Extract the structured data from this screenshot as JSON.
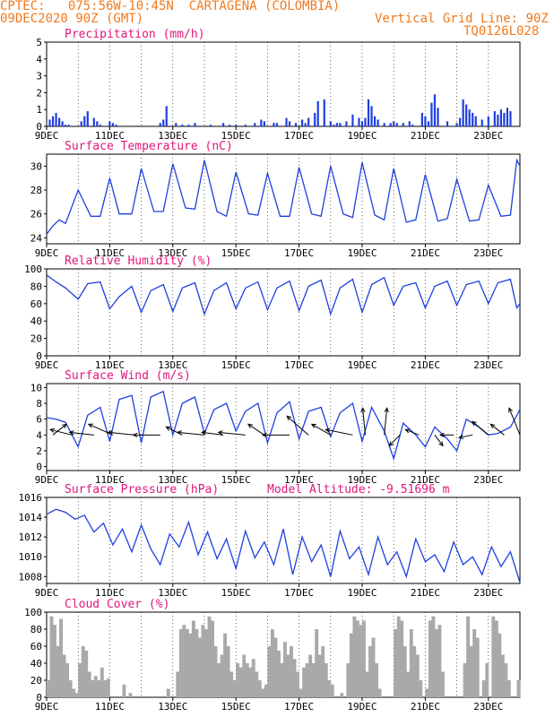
{
  "header": {
    "line1": "CPTEC:   075:56W-10:45N  CARTAGENA (COLOMBIA)",
    "line2": "09DEC2020 90Z (GMT)",
    "grid_note": "Vertical Grid Line: 90Z",
    "run_id": "TQ0126L028"
  },
  "colors": {
    "header": "#f07a1e",
    "title": "#e0157a",
    "line": "#1f3fe0",
    "bar": "#1f3fe0",
    "cloud": "#a9a9a9"
  },
  "x_tick_labels": [
    "9DEC",
    "11DEC",
    "13DEC",
    "15DEC",
    "17DEC",
    "19DEC",
    "21DEC",
    "23DEC"
  ],
  "chart_data": [
    {
      "type": "bar",
      "title": "Precipitation (mm/h)",
      "ylim": [
        0,
        5
      ],
      "yticks": [
        0,
        1,
        2,
        3,
        4,
        5
      ],
      "x_unit": "day",
      "xlim": [
        9,
        24
      ],
      "series": [
        {
          "x": [
            9.1,
            9.2,
            9.3,
            9.4,
            9.5,
            9.6,
            9.7,
            10.1,
            10.2,
            10.3,
            10.5,
            10.6,
            10.7,
            11.0,
            11.1,
            11.2,
            12.6,
            12.7,
            12.8,
            13.1,
            13.3,
            13.5,
            13.7,
            14.2,
            14.6,
            14.8,
            15.0,
            15.3,
            15.6,
            15.8,
            15.9,
            16.2,
            16.3,
            16.6,
            16.7,
            16.9,
            17.1,
            17.2,
            17.3,
            17.5,
            17.6,
            17.8,
            18.0,
            18.1,
            18.2,
            18.3,
            18.5,
            18.7,
            18.9,
            19.0,
            19.1,
            19.2,
            19.3,
            19.4,
            19.5,
            19.7,
            19.9,
            20.0,
            20.1,
            20.3,
            20.5,
            20.6,
            20.9,
            21.0,
            21.1,
            21.2,
            21.3,
            21.4,
            21.7,
            22.0,
            22.1,
            22.2,
            22.3,
            22.4,
            22.5,
            22.6,
            22.8,
            23.0,
            23.2,
            23.3,
            23.4,
            23.5,
            23.6,
            23.7
          ],
          "values": [
            0.4,
            0.6,
            0.8,
            0.5,
            0.3,
            0.1,
            0.1,
            0.3,
            0.6,
            0.9,
            0.5,
            0.3,
            0.1,
            0.3,
            0.2,
            0.1,
            0.2,
            0.4,
            1.2,
            0.2,
            0.1,
            0.1,
            0.2,
            0.1,
            0.2,
            0.1,
            0.1,
            0.1,
            0.2,
            0.4,
            0.3,
            0.2,
            0.2,
            0.5,
            0.3,
            0.2,
            0.4,
            0.2,
            0.5,
            0.8,
            1.5,
            1.6,
            0.3,
            0.1,
            0.2,
            0.2,
            0.3,
            0.7,
            0.5,
            0.3,
            0.5,
            1.6,
            1.2,
            0.6,
            0.4,
            0.2,
            0.2,
            0.3,
            0.2,
            0.2,
            0.3,
            0.1,
            0.8,
            0.6,
            0.3,
            1.4,
            1.9,
            1.1,
            0.3,
            0.2,
            0.5,
            1.6,
            1.3,
            1.0,
            0.8,
            0.6,
            0.4,
            0.6,
            0.9,
            0.7,
            1.0,
            0.8,
            1.1,
            0.9
          ]
        }
      ]
    },
    {
      "type": "line",
      "title": "Surface Temperature (nC)",
      "ylim": [
        23.5,
        31
      ],
      "yticks": [
        24,
        26,
        28,
        30
      ],
      "x_unit": "day",
      "xlim": [
        9,
        24
      ],
      "series": [
        {
          "x": [
            9.0,
            9.2,
            9.4,
            9.6,
            10.0,
            10.4,
            10.7,
            11.0,
            11.3,
            11.7,
            12.0,
            12.4,
            12.7,
            13.0,
            13.4,
            13.7,
            14.0,
            14.4,
            14.7,
            15.0,
            15.4,
            15.7,
            16.0,
            16.4,
            16.7,
            17.0,
            17.4,
            17.7,
            18.0,
            18.4,
            18.7,
            19.0,
            19.4,
            19.7,
            20.0,
            20.4,
            20.7,
            21.0,
            21.4,
            21.7,
            22.0,
            22.4,
            22.7,
            23.0,
            23.4,
            23.7,
            23.9,
            24.0
          ],
          "values": [
            24.3,
            25.0,
            25.5,
            25.2,
            28.0,
            25.8,
            25.8,
            29.0,
            26.0,
            26.0,
            29.8,
            26.2,
            26.2,
            30.2,
            26.5,
            26.4,
            30.5,
            26.2,
            25.8,
            29.5,
            26.0,
            25.9,
            29.4,
            25.8,
            25.8,
            29.9,
            26.0,
            25.8,
            30.0,
            26.0,
            25.7,
            30.3,
            25.9,
            25.5,
            29.8,
            25.3,
            25.5,
            29.3,
            25.4,
            25.6,
            28.9,
            25.4,
            25.5,
            28.4,
            25.8,
            25.9,
            30.5,
            30.0
          ]
        }
      ]
    },
    {
      "type": "line",
      "title": "Relative Humidity (%)",
      "ylim": [
        0,
        100
      ],
      "yticks": [
        0,
        20,
        40,
        60,
        80,
        100
      ],
      "x_unit": "day",
      "xlim": [
        9,
        24
      ],
      "series": [
        {
          "x": [
            9.0,
            9.3,
            9.6,
            10.0,
            10.3,
            10.7,
            11.0,
            11.3,
            11.7,
            12.0,
            12.3,
            12.7,
            13.0,
            13.3,
            13.7,
            14.0,
            14.3,
            14.7,
            15.0,
            15.3,
            15.7,
            16.0,
            16.3,
            16.7,
            17.0,
            17.3,
            17.7,
            18.0,
            18.3,
            18.7,
            19.0,
            19.3,
            19.7,
            20.0,
            20.3,
            20.7,
            21.0,
            21.3,
            21.7,
            22.0,
            22.3,
            22.7,
            23.0,
            23.3,
            23.7,
            23.9,
            24.0
          ],
          "values": [
            93,
            85,
            78,
            65,
            83,
            85,
            54,
            68,
            80,
            50,
            75,
            82,
            51,
            78,
            84,
            48,
            75,
            84,
            54,
            78,
            85,
            53,
            78,
            86,
            52,
            80,
            87,
            48,
            78,
            88,
            50,
            82,
            90,
            58,
            80,
            84,
            55,
            80,
            86,
            58,
            82,
            86,
            60,
            84,
            88,
            55,
            60
          ]
        }
      ]
    },
    {
      "type": "line",
      "title": "Surface Wind (m/s)",
      "ylim": [
        -0.5,
        10.5
      ],
      "yticks": [
        0,
        2,
        4,
        6,
        8,
        10
      ],
      "x_unit": "day",
      "xlim": [
        9,
        24
      ],
      "series": [
        {
          "x": [
            9.0,
            9.3,
            9.6,
            10.0,
            10.3,
            10.7,
            11.0,
            11.3,
            11.7,
            12.0,
            12.3,
            12.7,
            13.0,
            13.3,
            13.7,
            14.0,
            14.3,
            14.7,
            15.0,
            15.3,
            15.7,
            16.0,
            16.3,
            16.7,
            17.0,
            17.3,
            17.7,
            18.0,
            18.3,
            18.7,
            19.0,
            19.3,
            19.7,
            20.0,
            20.3,
            20.7,
            21.0,
            21.3,
            21.7,
            22.0,
            22.3,
            22.7,
            23.0,
            23.3,
            23.7,
            24.0
          ],
          "values": [
            6.2,
            6.0,
            5.6,
            2.5,
            6.5,
            7.5,
            3.2,
            8.5,
            9.0,
            3.0,
            8.8,
            9.5,
            4.0,
            8.0,
            8.8,
            4.2,
            7.2,
            8.0,
            4.5,
            7.0,
            8.0,
            3.0,
            6.8,
            8.2,
            3.5,
            7.0,
            7.5,
            3.8,
            6.8,
            8.0,
            3.2,
            7.5,
            4.5,
            1.0,
            5.5,
            4.0,
            2.5,
            5.0,
            3.5,
            2.0,
            6.0,
            5.0,
            4.0,
            4.2,
            5.0,
            7.2
          ]
        }
      ],
      "vectors": {
        "x": [
          9.2,
          9.8,
          10.5,
          11.1,
          11.8,
          12.6,
          13.3,
          14.0,
          14.6,
          15.3,
          15.9,
          16.7,
          17.3,
          18.0,
          18.7,
          19.1,
          19.7,
          20.2,
          20.8,
          21.3,
          21.9,
          22.5,
          23.0,
          23.5,
          24.0
        ],
        "u": [
          0.5,
          -0.8,
          -0.9,
          -0.9,
          -1.0,
          -1.0,
          -0.6,
          -1.0,
          -0.8,
          -1.0,
          -0.6,
          -1.0,
          -0.8,
          -0.7,
          -1.0,
          -0.1,
          0.1,
          -0.4,
          -0.5,
          0.3,
          -0.5,
          -0.5,
          -0.6,
          -0.5,
          -0.4
        ],
        "v": [
          0.4,
          0.2,
          0.1,
          0.4,
          0.1,
          0.0,
          0.3,
          0.1,
          0.1,
          0.1,
          0.4,
          0.0,
          0.7,
          0.4,
          0.2,
          1.0,
          1.0,
          -0.4,
          0.2,
          -0.4,
          0.0,
          -0.1,
          0.5,
          0.4,
          1.0
        ]
      }
    },
    {
      "type": "line",
      "title": "Surface Pressure (hPa)",
      "ylim": [
        1007.3,
        1016
      ],
      "yticks": [
        1008,
        1010,
        1012,
        1014,
        1016
      ],
      "x_unit": "day",
      "xlim": [
        9,
        24
      ],
      "series": [
        {
          "x": [
            9.0,
            9.3,
            9.6,
            9.9,
            10.2,
            10.5,
            10.8,
            11.1,
            11.4,
            11.7,
            12.0,
            12.3,
            12.6,
            12.9,
            13.2,
            13.5,
            13.8,
            14.1,
            14.4,
            14.7,
            15.0,
            15.3,
            15.6,
            15.9,
            16.2,
            16.5,
            16.8,
            17.1,
            17.4,
            17.7,
            18.0,
            18.3,
            18.6,
            18.9,
            19.2,
            19.5,
            19.8,
            20.1,
            20.4,
            20.7,
            21.0,
            21.3,
            21.6,
            21.9,
            22.2,
            22.5,
            22.8,
            23.1,
            23.4,
            23.7,
            24.0
          ],
          "values": [
            1014.3,
            1014.8,
            1014.5,
            1013.8,
            1014.2,
            1012.5,
            1013.4,
            1011.2,
            1012.8,
            1010.5,
            1013.2,
            1010.8,
            1009.2,
            1012.3,
            1011.0,
            1013.5,
            1010.2,
            1012.5,
            1009.8,
            1011.8,
            1008.8,
            1012.6,
            1009.9,
            1011.5,
            1009.2,
            1012.8,
            1008.2,
            1012.0,
            1009.5,
            1011.2,
            1008.0,
            1012.6,
            1009.8,
            1011.0,
            1008.2,
            1012.0,
            1009.2,
            1010.5,
            1008.0,
            1011.8,
            1009.5,
            1010.2,
            1008.5,
            1011.5,
            1009.2,
            1010.0,
            1008.2,
            1011.0,
            1009.0,
            1010.5,
            1007.4
          ]
        }
      ],
      "annotation": "Model Altitude: -9.51696 m"
    },
    {
      "type": "bar",
      "title": "Cloud Cover (%)",
      "ylim": [
        0,
        100
      ],
      "yticks": [
        0,
        20,
        40,
        60,
        80,
        100
      ],
      "x_unit": "day",
      "xlim": [
        9,
        24
      ],
      "series": [
        {
          "x": [
            9.0,
            9.1,
            9.2,
            9.3,
            9.4,
            9.5,
            9.6,
            9.7,
            9.8,
            9.9,
            10.0,
            10.1,
            10.2,
            10.3,
            10.4,
            10.5,
            10.6,
            10.7,
            10.8,
            10.9,
            11.0,
            11.1,
            11.2,
            11.3,
            11.4,
            11.5,
            11.6,
            11.7,
            11.8,
            11.9,
            12.0,
            12.1,
            12.2,
            12.3,
            12.4,
            12.5,
            12.6,
            12.7,
            12.8,
            12.9,
            13.0,
            13.1,
            13.2,
            13.3,
            13.4,
            13.5,
            13.6,
            13.7,
            13.8,
            13.9,
            14.0,
            14.1,
            14.2,
            14.3,
            14.4,
            14.5,
            14.6,
            14.7,
            14.8,
            14.9,
            15.0,
            15.1,
            15.2,
            15.3,
            15.4,
            15.5,
            15.6,
            15.7,
            15.8,
            15.9,
            16.0,
            16.1,
            16.2,
            16.3,
            16.4,
            16.5,
            16.6,
            16.7,
            16.8,
            16.9,
            17.0,
            17.1,
            17.2,
            17.3,
            17.4,
            17.5,
            17.6,
            17.7,
            17.8,
            17.9,
            18.0,
            18.1,
            18.2,
            18.3,
            18.4,
            18.5,
            18.6,
            18.7,
            18.8,
            18.9,
            19.0,
            19.1,
            19.2,
            19.3,
            19.4,
            19.5,
            19.6,
            19.7,
            19.8,
            19.9,
            20.0,
            20.1,
            20.2,
            20.3,
            20.4,
            20.5,
            20.6,
            20.7,
            20.8,
            20.9,
            21.0,
            21.1,
            21.2,
            21.3,
            21.4,
            21.5,
            21.6,
            21.7,
            21.8,
            21.9,
            22.0,
            22.1,
            22.2,
            22.3,
            22.4,
            22.5,
            22.6,
            22.7,
            22.8,
            22.9,
            23.0,
            23.1,
            23.2,
            23.3,
            23.4,
            23.5,
            23.6,
            23.7,
            23.8,
            23.9
          ],
          "values": [
            20,
            95,
            85,
            60,
            92,
            50,
            40,
            20,
            10,
            5,
            40,
            60,
            55,
            30,
            20,
            25,
            20,
            35,
            20,
            22,
            0,
            0,
            0,
            0,
            15,
            0,
            5,
            0,
            0,
            0,
            0,
            0,
            0,
            0,
            0,
            0,
            0,
            0,
            10,
            0,
            0,
            30,
            80,
            85,
            80,
            75,
            90,
            80,
            70,
            85,
            80,
            95,
            90,
            60,
            40,
            50,
            75,
            60,
            30,
            20,
            40,
            35,
            50,
            40,
            35,
            45,
            30,
            20,
            10,
            15,
            60,
            80,
            70,
            55,
            40,
            65,
            50,
            60,
            45,
            30,
            10,
            35,
            40,
            50,
            40,
            80,
            50,
            60,
            40,
            20,
            15,
            0,
            0,
            5,
            0,
            40,
            75,
            95,
            90,
            85,
            90,
            30,
            60,
            70,
            40,
            10,
            0,
            0,
            0,
            0,
            80,
            95,
            90,
            60,
            30,
            80,
            60,
            50,
            20,
            0,
            10,
            90,
            95,
            80,
            85,
            30,
            0,
            0,
            0,
            0,
            0,
            0,
            40,
            95,
            60,
            80,
            70,
            0,
            20,
            40,
            0,
            95,
            90,
            75,
            50,
            40,
            20,
            0,
            0,
            20
          ]
        }
      ]
    }
  ]
}
